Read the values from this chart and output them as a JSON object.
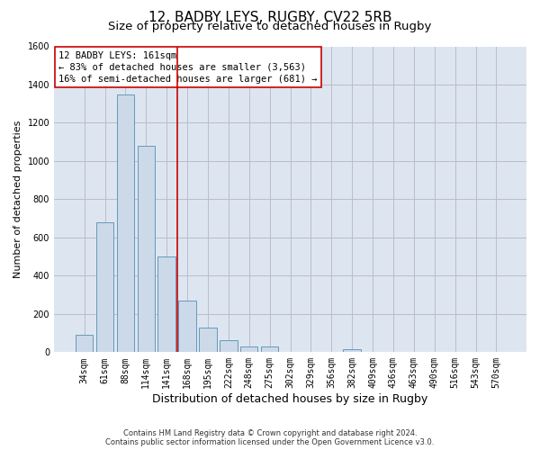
{
  "title": "12, BADBY LEYS, RUGBY, CV22 5RB",
  "subtitle": "Size of property relative to detached houses in Rugby",
  "xlabel": "Distribution of detached houses by size in Rugby",
  "ylabel": "Number of detached properties",
  "categories": [
    "34sqm",
    "61sqm",
    "88sqm",
    "114sqm",
    "141sqm",
    "168sqm",
    "195sqm",
    "222sqm",
    "248sqm",
    "275sqm",
    "302sqm",
    "329sqm",
    "356sqm",
    "382sqm",
    "409sqm",
    "436sqm",
    "463sqm",
    "490sqm",
    "516sqm",
    "543sqm",
    "570sqm"
  ],
  "values": [
    90,
    680,
    1350,
    1080,
    500,
    270,
    130,
    65,
    30,
    30,
    0,
    0,
    0,
    15,
    0,
    0,
    0,
    0,
    0,
    0,
    0
  ],
  "bar_color": "#ccd9e8",
  "bar_edge_color": "#6699bb",
  "vline_position": 4.5,
  "vline_color": "#cc0000",
  "annotation_line1": "12 BADBY LEYS: 161sqm",
  "annotation_line2": "← 83% of detached houses are smaller (3,563)",
  "annotation_line3": "16% of semi-detached houses are larger (681) →",
  "annotation_box_color": "white",
  "annotation_box_edge": "#cc0000",
  "ylim_max": 1600,
  "yticks": [
    0,
    200,
    400,
    600,
    800,
    1000,
    1200,
    1400,
    1600
  ],
  "grid_color": "#bbbbcc",
  "bg_color": "#dde6f0",
  "footer": "Contains HM Land Registry data © Crown copyright and database right 2024.\nContains public sector information licensed under the Open Government Licence v3.0.",
  "title_fontsize": 11,
  "subtitle_fontsize": 9.5,
  "xlabel_fontsize": 9,
  "ylabel_fontsize": 8,
  "tick_fontsize": 7,
  "annot_fontsize": 7.5
}
